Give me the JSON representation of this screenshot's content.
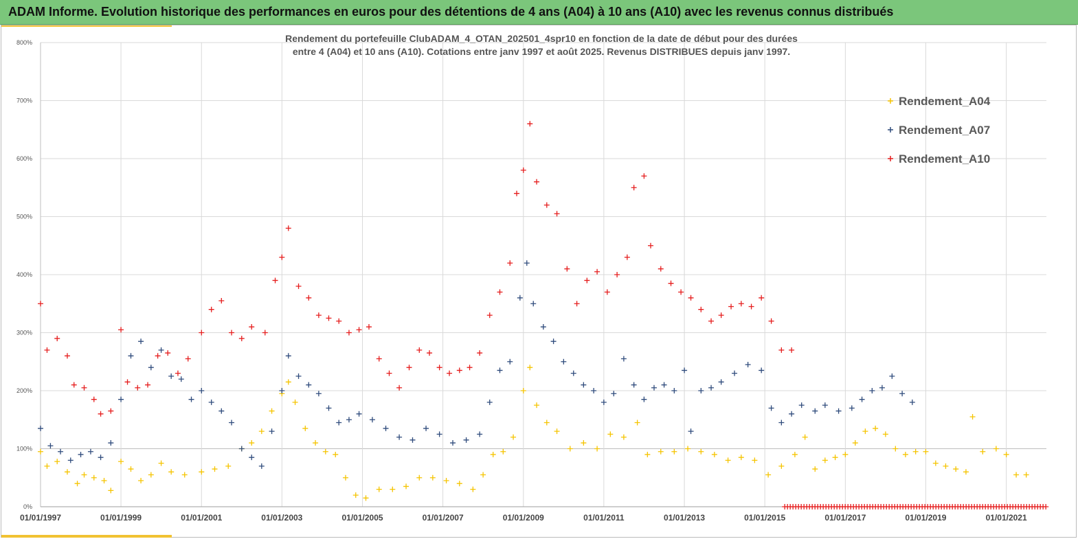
{
  "banner": {
    "title": "ADAM Informe. Evolution historique des performances en euros pour des détentions de 4 ans (A04) à 10 ans (A10) avec les revenus connus distribués"
  },
  "colors": {
    "banner_bg": "#7bc67b",
    "accent": "#f1c232",
    "A04": "#f5c400",
    "A07": "#2f4b7c",
    "A10": "#e51d1d"
  },
  "chart_data": {
    "type": "scatter",
    "marker": "+",
    "title_lines": [
      "Rendement du portefeuille ClubADAM_4_OTAN_202501_4spr10  en fonction de la date de début pour des durées",
      "entre 4 (A04) et 10 ans (A10). Cotations entre janv 1997 et août 2025. Revenus DISTRIBUES depuis janv 1997."
    ],
    "xlabel": "",
    "ylabel": "",
    "x_type": "date",
    "xlim": [
      "1997-01-01",
      "2021-12-31"
    ],
    "ylim": [
      0,
      800
    ],
    "y_unit": "%",
    "x_ticks": [
      "01/01/1997",
      "01/01/1999",
      "01/01/2001",
      "01/01/2003",
      "01/01/2005",
      "01/01/2007",
      "01/01/2009",
      "01/01/2011",
      "01/01/2013",
      "01/01/2015",
      "01/01/2017",
      "01/01/2019",
      "01/01/2021"
    ],
    "y_ticks": [
      "0%",
      "100%",
      "200%",
      "300%",
      "400%",
      "500%",
      "600%",
      "700%",
      "800%"
    ],
    "grid": "vertical at each tick and horizontal at each tick",
    "legend_position": "top-right",
    "series": [
      {
        "name": "Rendement_A04",
        "color": "#f5c400",
        "points": [
          [
            "1997-01-01",
            95
          ],
          [
            "1997-03-01",
            70
          ],
          [
            "1997-06-01",
            78
          ],
          [
            "1997-09-01",
            60
          ],
          [
            "1997-12-01",
            40
          ],
          [
            "1998-02-01",
            55
          ],
          [
            "1998-05-01",
            50
          ],
          [
            "1998-08-01",
            45
          ],
          [
            "1998-10-01",
            28
          ],
          [
            "1999-01-01",
            78
          ],
          [
            "1999-04-01",
            65
          ],
          [
            "1999-07-01",
            45
          ],
          [
            "1999-10-01",
            55
          ],
          [
            "2000-01-01",
            75
          ],
          [
            "2000-04-01",
            60
          ],
          [
            "2000-08-01",
            55
          ],
          [
            "2001-01-01",
            60
          ],
          [
            "2001-05-01",
            65
          ],
          [
            "2001-09-01",
            70
          ],
          [
            "2002-01-01",
            100
          ],
          [
            "2002-04-01",
            110
          ],
          [
            "2002-07-01",
            130
          ],
          [
            "2002-10-01",
            165
          ],
          [
            "2003-01-01",
            195
          ],
          [
            "2003-03-01",
            215
          ],
          [
            "2003-05-01",
            180
          ],
          [
            "2003-08-01",
            135
          ],
          [
            "2003-11-01",
            110
          ],
          [
            "2004-02-01",
            95
          ],
          [
            "2004-05-01",
            90
          ],
          [
            "2004-08-01",
            50
          ],
          [
            "2004-11-01",
            20
          ],
          [
            "2005-02-01",
            15
          ],
          [
            "2005-06-01",
            30
          ],
          [
            "2005-10-01",
            30
          ],
          [
            "2006-02-01",
            35
          ],
          [
            "2006-06-01",
            50
          ],
          [
            "2006-10-01",
            50
          ],
          [
            "2007-02-01",
            45
          ],
          [
            "2007-06-01",
            40
          ],
          [
            "2007-10-01",
            30
          ],
          [
            "2008-01-01",
            55
          ],
          [
            "2008-04-01",
            90
          ],
          [
            "2008-07-01",
            95
          ],
          [
            "2008-10-01",
            120
          ],
          [
            "2009-01-01",
            200
          ],
          [
            "2009-03-01",
            240
          ],
          [
            "2009-05-01",
            175
          ],
          [
            "2009-08-01",
            145
          ],
          [
            "2009-11-01",
            130
          ],
          [
            "2010-03-01",
            100
          ],
          [
            "2010-07-01",
            110
          ],
          [
            "2010-11-01",
            100
          ],
          [
            "2011-03-01",
            125
          ],
          [
            "2011-07-01",
            120
          ],
          [
            "2011-11-01",
            145
          ],
          [
            "2012-02-01",
            90
          ],
          [
            "2012-06-01",
            95
          ],
          [
            "2012-10-01",
            95
          ],
          [
            "2013-02-01",
            100
          ],
          [
            "2013-06-01",
            95
          ],
          [
            "2013-10-01",
            90
          ],
          [
            "2014-02-01",
            80
          ],
          [
            "2014-06-01",
            85
          ],
          [
            "2014-10-01",
            80
          ],
          [
            "2015-02-01",
            55
          ],
          [
            "2015-06-01",
            70
          ],
          [
            "2015-10-01",
            90
          ],
          [
            "2016-01-01",
            120
          ],
          [
            "2016-04-01",
            65
          ],
          [
            "2016-07-01",
            80
          ],
          [
            "2016-10-01",
            85
          ],
          [
            "2017-01-01",
            90
          ],
          [
            "2017-04-01",
            110
          ],
          [
            "2017-07-01",
            130
          ],
          [
            "2017-10-01",
            135
          ],
          [
            "2018-01-01",
            125
          ],
          [
            "2018-04-01",
            100
          ],
          [
            "2018-07-01",
            90
          ],
          [
            "2018-10-01",
            95
          ],
          [
            "2019-01-01",
            95
          ],
          [
            "2019-04-01",
            75
          ],
          [
            "2019-07-01",
            70
          ],
          [
            "2019-10-01",
            65
          ],
          [
            "2020-01-01",
            60
          ],
          [
            "2020-03-01",
            155
          ],
          [
            "2020-06-01",
            95
          ],
          [
            "2020-10-01",
            100
          ],
          [
            "2021-01-01",
            90
          ],
          [
            "2021-04-01",
            55
          ],
          [
            "2021-07-01",
            55
          ]
        ]
      },
      {
        "name": "Rendement_A07",
        "color": "#2f4b7c",
        "points": [
          [
            "1997-01-01",
            135
          ],
          [
            "1997-04-01",
            105
          ],
          [
            "1997-07-01",
            95
          ],
          [
            "1997-10-01",
            80
          ],
          [
            "1998-01-01",
            90
          ],
          [
            "1998-04-01",
            95
          ],
          [
            "1998-07-01",
            85
          ],
          [
            "1998-10-01",
            110
          ],
          [
            "1999-01-01",
            185
          ],
          [
            "1999-04-01",
            260
          ],
          [
            "1999-07-01",
            285
          ],
          [
            "1999-10-01",
            240
          ],
          [
            "2000-01-01",
            270
          ],
          [
            "2000-04-01",
            225
          ],
          [
            "2000-07-01",
            220
          ],
          [
            "2000-10-01",
            185
          ],
          [
            "2001-01-01",
            200
          ],
          [
            "2001-04-01",
            180
          ],
          [
            "2001-07-01",
            165
          ],
          [
            "2001-10-01",
            145
          ],
          [
            "2002-01-01",
            100
          ],
          [
            "2002-04-01",
            85
          ],
          [
            "2002-07-01",
            70
          ],
          [
            "2002-10-01",
            130
          ],
          [
            "2003-01-01",
            200
          ],
          [
            "2003-03-01",
            260
          ],
          [
            "2003-06-01",
            225
          ],
          [
            "2003-09-01",
            210
          ],
          [
            "2003-12-01",
            195
          ],
          [
            "2004-03-01",
            170
          ],
          [
            "2004-06-01",
            145
          ],
          [
            "2004-09-01",
            150
          ],
          [
            "2004-12-01",
            160
          ],
          [
            "2005-04-01",
            150
          ],
          [
            "2005-08-01",
            135
          ],
          [
            "2005-12-01",
            120
          ],
          [
            "2006-04-01",
            115
          ],
          [
            "2006-08-01",
            135
          ],
          [
            "2006-12-01",
            125
          ],
          [
            "2007-04-01",
            110
          ],
          [
            "2007-08-01",
            115
          ],
          [
            "2007-12-01",
            125
          ],
          [
            "2008-03-01",
            180
          ],
          [
            "2008-06-01",
            235
          ],
          [
            "2008-09-01",
            250
          ],
          [
            "2008-12-01",
            360
          ],
          [
            "2009-02-01",
            420
          ],
          [
            "2009-04-01",
            350
          ],
          [
            "2009-07-01",
            310
          ],
          [
            "2009-10-01",
            285
          ],
          [
            "2010-01-01",
            250
          ],
          [
            "2010-04-01",
            230
          ],
          [
            "2010-07-01",
            210
          ],
          [
            "2010-10-01",
            200
          ],
          [
            "2011-01-01",
            180
          ],
          [
            "2011-04-01",
            195
          ],
          [
            "2011-07-01",
            255
          ],
          [
            "2011-10-01",
            210
          ],
          [
            "2012-01-01",
            185
          ],
          [
            "2012-04-01",
            205
          ],
          [
            "2012-07-01",
            210
          ],
          [
            "2012-10-01",
            200
          ],
          [
            "2013-01-01",
            235
          ],
          [
            "2013-03-01",
            130
          ],
          [
            "2013-06-01",
            200
          ],
          [
            "2013-09-01",
            205
          ],
          [
            "2013-12-01",
            215
          ],
          [
            "2014-04-01",
            230
          ],
          [
            "2014-08-01",
            245
          ],
          [
            "2014-12-01",
            235
          ],
          [
            "2015-03-01",
            170
          ],
          [
            "2015-06-01",
            145
          ],
          [
            "2015-09-01",
            160
          ],
          [
            "2015-12-01",
            175
          ],
          [
            "2016-04-01",
            165
          ],
          [
            "2016-07-01",
            175
          ],
          [
            "2016-11-01",
            165
          ],
          [
            "2017-03-01",
            170
          ],
          [
            "2017-06-01",
            185
          ],
          [
            "2017-09-01",
            200
          ],
          [
            "2017-12-01",
            205
          ],
          [
            "2018-03-01",
            225
          ],
          [
            "2018-06-01",
            195
          ],
          [
            "2018-09-01",
            180
          ]
        ]
      },
      {
        "name": "Rendement_A10",
        "color": "#e51d1d",
        "points": [
          [
            "1997-01-01",
            350
          ],
          [
            "1997-03-01",
            270
          ],
          [
            "1997-06-01",
            290
          ],
          [
            "1997-09-01",
            260
          ],
          [
            "1997-11-01",
            210
          ],
          [
            "1998-02-01",
            205
          ],
          [
            "1998-05-01",
            185
          ],
          [
            "1998-07-01",
            160
          ],
          [
            "1998-10-01",
            165
          ],
          [
            "1999-01-01",
            305
          ],
          [
            "1999-03-01",
            215
          ],
          [
            "1999-06-01",
            205
          ],
          [
            "1999-09-01",
            210
          ],
          [
            "1999-12-01",
            260
          ],
          [
            "2000-03-01",
            265
          ],
          [
            "2000-06-01",
            230
          ],
          [
            "2000-09-01",
            255
          ],
          [
            "2001-01-01",
            300
          ],
          [
            "2001-04-01",
            340
          ],
          [
            "2001-07-01",
            355
          ],
          [
            "2001-10-01",
            300
          ],
          [
            "2002-01-01",
            290
          ],
          [
            "2002-04-01",
            310
          ],
          [
            "2002-08-01",
            300
          ],
          [
            "2002-11-01",
            390
          ],
          [
            "2003-01-01",
            430
          ],
          [
            "2003-03-01",
            480
          ],
          [
            "2003-06-01",
            380
          ],
          [
            "2003-09-01",
            360
          ],
          [
            "2003-12-01",
            330
          ],
          [
            "2004-03-01",
            325
          ],
          [
            "2004-06-01",
            320
          ],
          [
            "2004-09-01",
            300
          ],
          [
            "2004-12-01",
            305
          ],
          [
            "2005-03-01",
            310
          ],
          [
            "2005-06-01",
            255
          ],
          [
            "2005-09-01",
            230
          ],
          [
            "2005-12-01",
            205
          ],
          [
            "2006-03-01",
            240
          ],
          [
            "2006-06-01",
            270
          ],
          [
            "2006-09-01",
            265
          ],
          [
            "2006-12-01",
            240
          ],
          [
            "2007-03-01",
            230
          ],
          [
            "2007-06-01",
            235
          ],
          [
            "2007-09-01",
            240
          ],
          [
            "2007-12-01",
            265
          ],
          [
            "2008-03-01",
            330
          ],
          [
            "2008-06-01",
            370
          ],
          [
            "2008-09-01",
            420
          ],
          [
            "2008-11-01",
            540
          ],
          [
            "2009-01-01",
            580
          ],
          [
            "2009-03-01",
            660
          ],
          [
            "2009-05-01",
            560
          ],
          [
            "2009-08-01",
            520
          ],
          [
            "2009-11-01",
            505
          ],
          [
            "2010-02-01",
            410
          ],
          [
            "2010-05-01",
            350
          ],
          [
            "2010-08-01",
            390
          ],
          [
            "2010-11-01",
            405
          ],
          [
            "2011-02-01",
            370
          ],
          [
            "2011-05-01",
            400
          ],
          [
            "2011-08-01",
            430
          ],
          [
            "2011-10-01",
            550
          ],
          [
            "2012-01-01",
            570
          ],
          [
            "2012-03-01",
            450
          ],
          [
            "2012-06-01",
            410
          ],
          [
            "2012-09-01",
            385
          ],
          [
            "2012-12-01",
            370
          ],
          [
            "2013-03-01",
            360
          ],
          [
            "2013-06-01",
            340
          ],
          [
            "2013-09-01",
            320
          ],
          [
            "2013-12-01",
            330
          ],
          [
            "2014-03-01",
            345
          ],
          [
            "2014-06-01",
            350
          ],
          [
            "2014-09-01",
            345
          ],
          [
            "2014-12-01",
            360
          ],
          [
            "2015-03-01",
            320
          ],
          [
            "2015-06-01",
            270
          ],
          [
            "2015-09-01",
            270
          ]
        ]
      }
    ],
    "zero_band": {
      "series": "Rendement_A10",
      "from": "2015-07-01",
      "to": "2021-12-31",
      "value": 0
    }
  }
}
